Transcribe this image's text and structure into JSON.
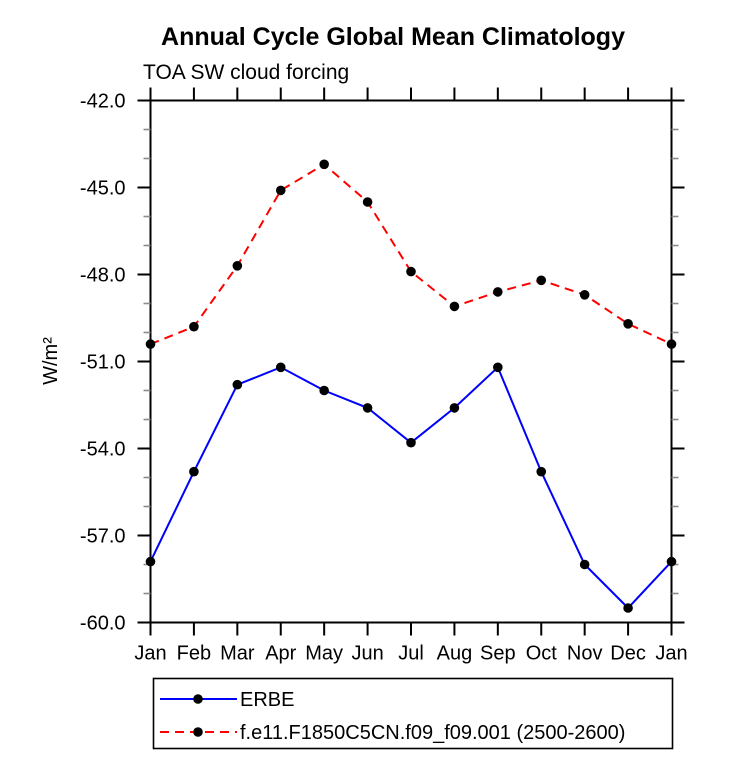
{
  "chart_data": {
    "type": "line",
    "title": "Annual Cycle Global Mean Climatology",
    "subtitle": "TOA SW cloud forcing",
    "ylabel": "W/m²",
    "x_categories": [
      "Jan",
      "Feb",
      "Mar",
      "Apr",
      "May",
      "Jun",
      "Jul",
      "Aug",
      "Sep",
      "Oct",
      "Nov",
      "Dec",
      "Jan"
    ],
    "ylim": [
      -60.0,
      -42.0
    ],
    "ytick_major_values": [
      -42,
      -45,
      -48,
      -51,
      -54,
      -57,
      -60
    ],
    "ytick_labels": [
      "-42.0",
      "-45.0",
      "-48.0",
      "-51.0",
      "-54.0",
      "-57.0",
      "-60.0"
    ],
    "ytick_minor_step": 1.0,
    "grid": false,
    "legend_position": "bottom",
    "colors": {
      "frame": "#000000",
      "minor_tick": "#8c8c8c",
      "marker": "#000000",
      "erbe_line": "#0000ff",
      "model_line": "#ff0000"
    },
    "series": [
      {
        "name": "ERBE",
        "color": "#0000ff",
        "style": "solid",
        "marker": "circle",
        "marker_color": "#000000",
        "values": [
          -57.9,
          -54.8,
          -51.8,
          -51.2,
          -52.0,
          -52.6,
          -53.8,
          -52.6,
          -51.2,
          -54.8,
          -58.0,
          -59.5,
          -57.9
        ]
      },
      {
        "name": "f.e11.F1850C5CN.f09_f09.001 (2500-2600)",
        "color": "#ff0000",
        "style": "dashed",
        "marker": "circle",
        "marker_color": "#000000",
        "values": [
          -50.4,
          -49.8,
          -47.7,
          -45.1,
          -44.2,
          -45.5,
          -47.9,
          -49.1,
          -48.6,
          -48.2,
          -48.7,
          -49.7,
          -50.4
        ]
      }
    ]
  }
}
